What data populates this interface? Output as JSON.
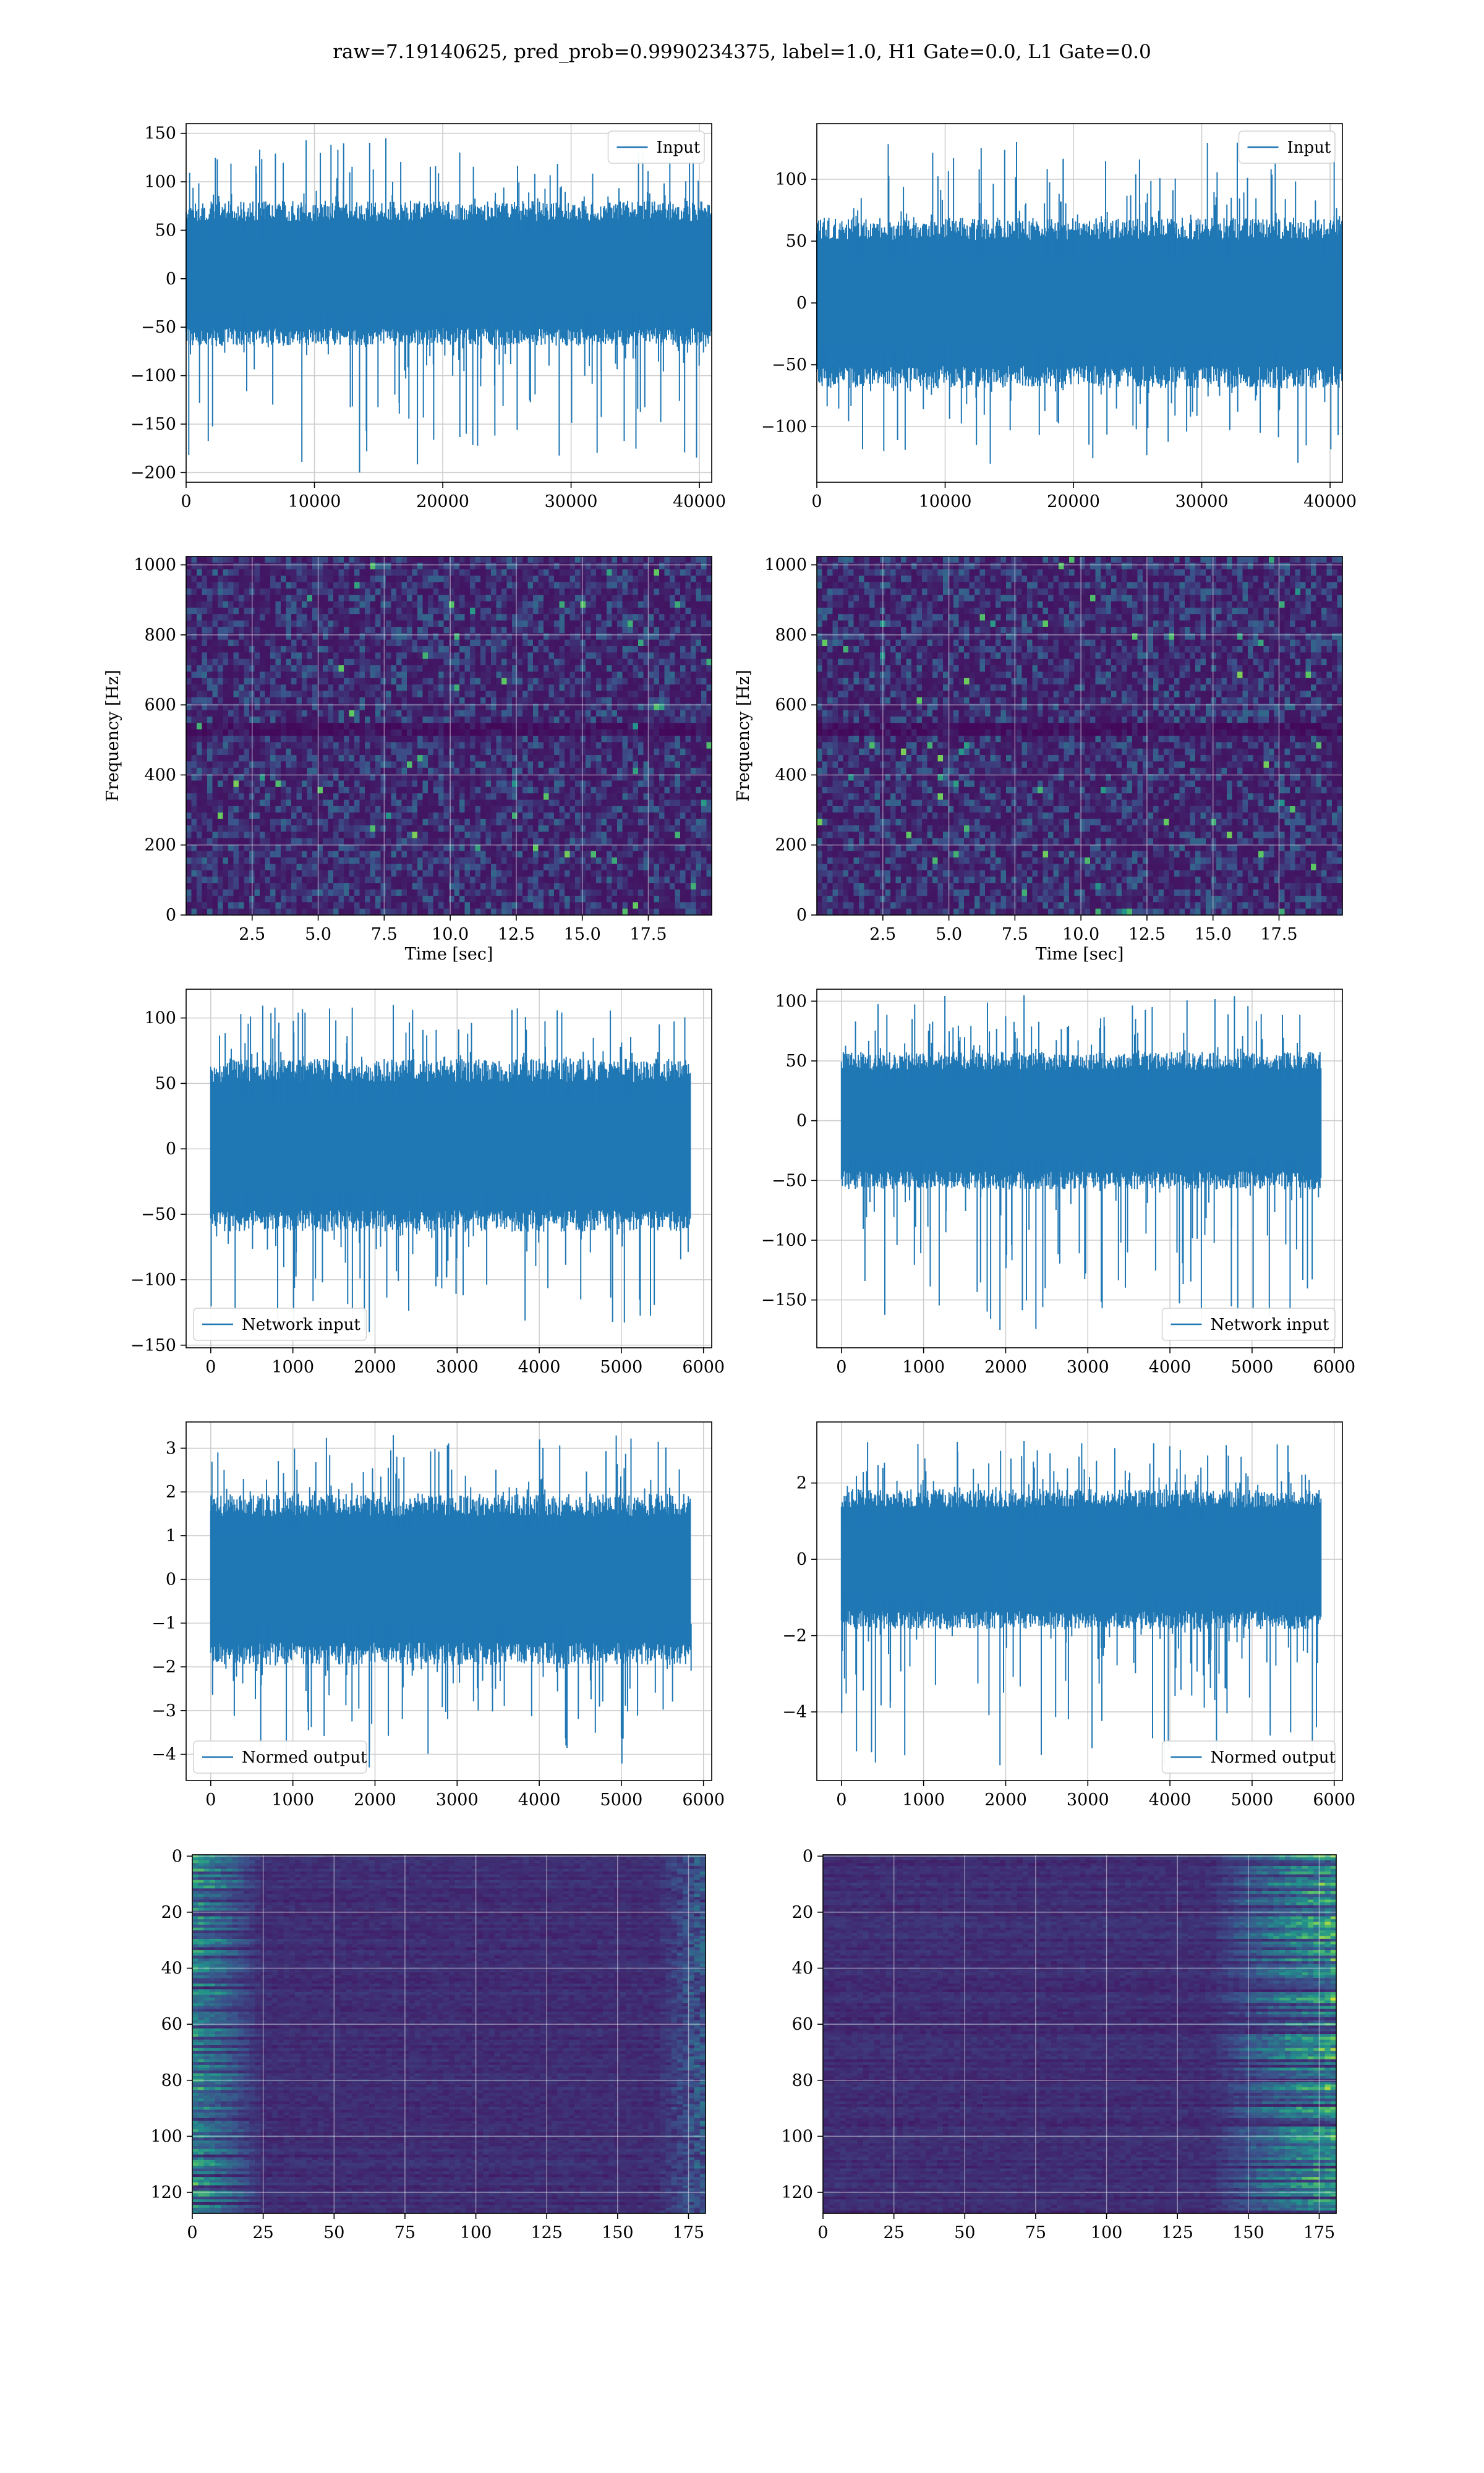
{
  "suptitle": "raw=7.19140625, pred_prob=0.9990234375, label=1.0, H1 Gate=0.0, L1 Gate=0.0",
  "colors": {
    "line": "#1f77b4",
    "grid": "#cccccc",
    "viridis_low": "#440154",
    "viridis_high": "#fde725"
  },
  "chart_data": [
    {
      "type": "line",
      "panel": "row1-left",
      "series": [
        {
          "name": "Input"
        }
      ],
      "legend": "upper right",
      "xlim": [
        0,
        40960
      ],
      "ylim": [
        -210,
        160
      ],
      "xticks": [
        0,
        10000,
        20000,
        30000,
        40000
      ],
      "yticks": [
        150,
        100,
        50,
        0,
        -50,
        -100,
        -150,
        -200
      ],
      "envelope": {
        "typical": [
          -60,
          70
        ],
        "max": 145,
        "min": -200
      },
      "grid": true
    },
    {
      "type": "line",
      "panel": "row1-right",
      "series": [
        {
          "name": "Input"
        }
      ],
      "legend": "upper right",
      "xlim": [
        0,
        40960
      ],
      "ylim": [
        -145,
        145
      ],
      "xticks": [
        0,
        10000,
        20000,
        30000,
        40000
      ],
      "yticks": [
        100,
        50,
        0,
        -50,
        -100
      ],
      "envelope": {
        "typical": [
          -60,
          60
        ],
        "max": 130,
        "min": -130
      },
      "grid": true
    },
    {
      "type": "heatmap",
      "panel": "row2-left",
      "ylabel": "Frequency [Hz]",
      "xlabel": "Time [sec]",
      "xlim": [
        0,
        19.9
      ],
      "ylim": [
        0,
        1024
      ],
      "xticks": [
        "2.5",
        "5.0",
        "7.5",
        "10.0",
        "12.5",
        "15.0",
        "17.5"
      ],
      "yticks": [
        "0",
        "200",
        "400",
        "600",
        "800",
        "1000"
      ],
      "grid": true
    },
    {
      "type": "heatmap",
      "panel": "row2-right",
      "ylabel": "Frequency [Hz]",
      "xlabel": "Time [sec]",
      "xlim": [
        0,
        19.9
      ],
      "ylim": [
        0,
        1024
      ],
      "xticks": [
        "2.5",
        "5.0",
        "7.5",
        "10.0",
        "12.5",
        "15.0",
        "17.5"
      ],
      "yticks": [
        "0",
        "200",
        "400",
        "600",
        "800",
        "1000"
      ],
      "grid": true
    },
    {
      "type": "line",
      "panel": "row3-left",
      "series": [
        {
          "name": "Network input"
        }
      ],
      "legend": "lower left",
      "xlim": [
        -300,
        6100
      ],
      "ylim": [
        -152,
        122
      ],
      "xticks": [
        0,
        1000,
        2000,
        3000,
        4000,
        5000,
        6000
      ],
      "yticks": [
        100,
        50,
        0,
        -50,
        -100,
        -150
      ],
      "envelope": {
        "typical": [
          -55,
          60
        ],
        "max": 110,
        "min": -140
      },
      "grid": true
    },
    {
      "type": "line",
      "panel": "row3-right",
      "series": [
        {
          "name": "Network input"
        }
      ],
      "legend": "lower right",
      "xlim": [
        -300,
        6100
      ],
      "ylim": [
        -190,
        110
      ],
      "xticks": [
        0,
        1000,
        2000,
        3000,
        4000,
        5000,
        6000
      ],
      "yticks": [
        100,
        50,
        0,
        -50,
        -100,
        -150
      ],
      "envelope": {
        "typical": [
          -50,
          50
        ],
        "max": 105,
        "min": -175
      },
      "grid": true
    },
    {
      "type": "line",
      "panel": "row4-left",
      "series": [
        {
          "name": "Normed output"
        }
      ],
      "legend": "lower left",
      "xlim": [
        -300,
        6100
      ],
      "ylim": [
        -4.6,
        3.6
      ],
      "xticks": [
        0,
        1000,
        2000,
        3000,
        4000,
        5000,
        6000
      ],
      "yticks": [
        3,
        2,
        1,
        0,
        -1,
        -2,
        -3,
        -4
      ],
      "envelope": {
        "typical": [
          -1.7,
          1.7
        ],
        "max": 3.3,
        "min": -4.3
      },
      "grid": true
    },
    {
      "type": "line",
      "panel": "row4-right",
      "series": [
        {
          "name": "Normed output"
        }
      ],
      "legend": "lower right",
      "xlim": [
        -300,
        6100
      ],
      "ylim": [
        -5.8,
        3.6
      ],
      "xticks": [
        0,
        1000,
        2000,
        3000,
        4000,
        5000,
        6000
      ],
      "yticks": [
        2,
        0,
        -2,
        -4
      ],
      "envelope": {
        "typical": [
          -1.6,
          1.6
        ],
        "max": 3.1,
        "min": -5.4
      },
      "grid": true
    },
    {
      "type": "heatmap",
      "panel": "row5-left",
      "xlim": [
        0,
        181
      ],
      "ylim": [
        127.5,
        -0.5
      ],
      "xticks": [
        "0",
        "25",
        "50",
        "75",
        "100",
        "125",
        "150",
        "175"
      ],
      "yticks": [
        "0",
        "20",
        "40",
        "60",
        "80",
        "100",
        "120"
      ],
      "grid": true
    },
    {
      "type": "heatmap",
      "panel": "row5-right",
      "xlim": [
        0,
        181
      ],
      "ylim": [
        127.5,
        -0.5
      ],
      "xticks": [
        "0",
        "25",
        "50",
        "75",
        "100",
        "125",
        "150",
        "175"
      ],
      "yticks": [
        "0",
        "20",
        "40",
        "60",
        "80",
        "100",
        "120"
      ],
      "grid": true
    }
  ]
}
